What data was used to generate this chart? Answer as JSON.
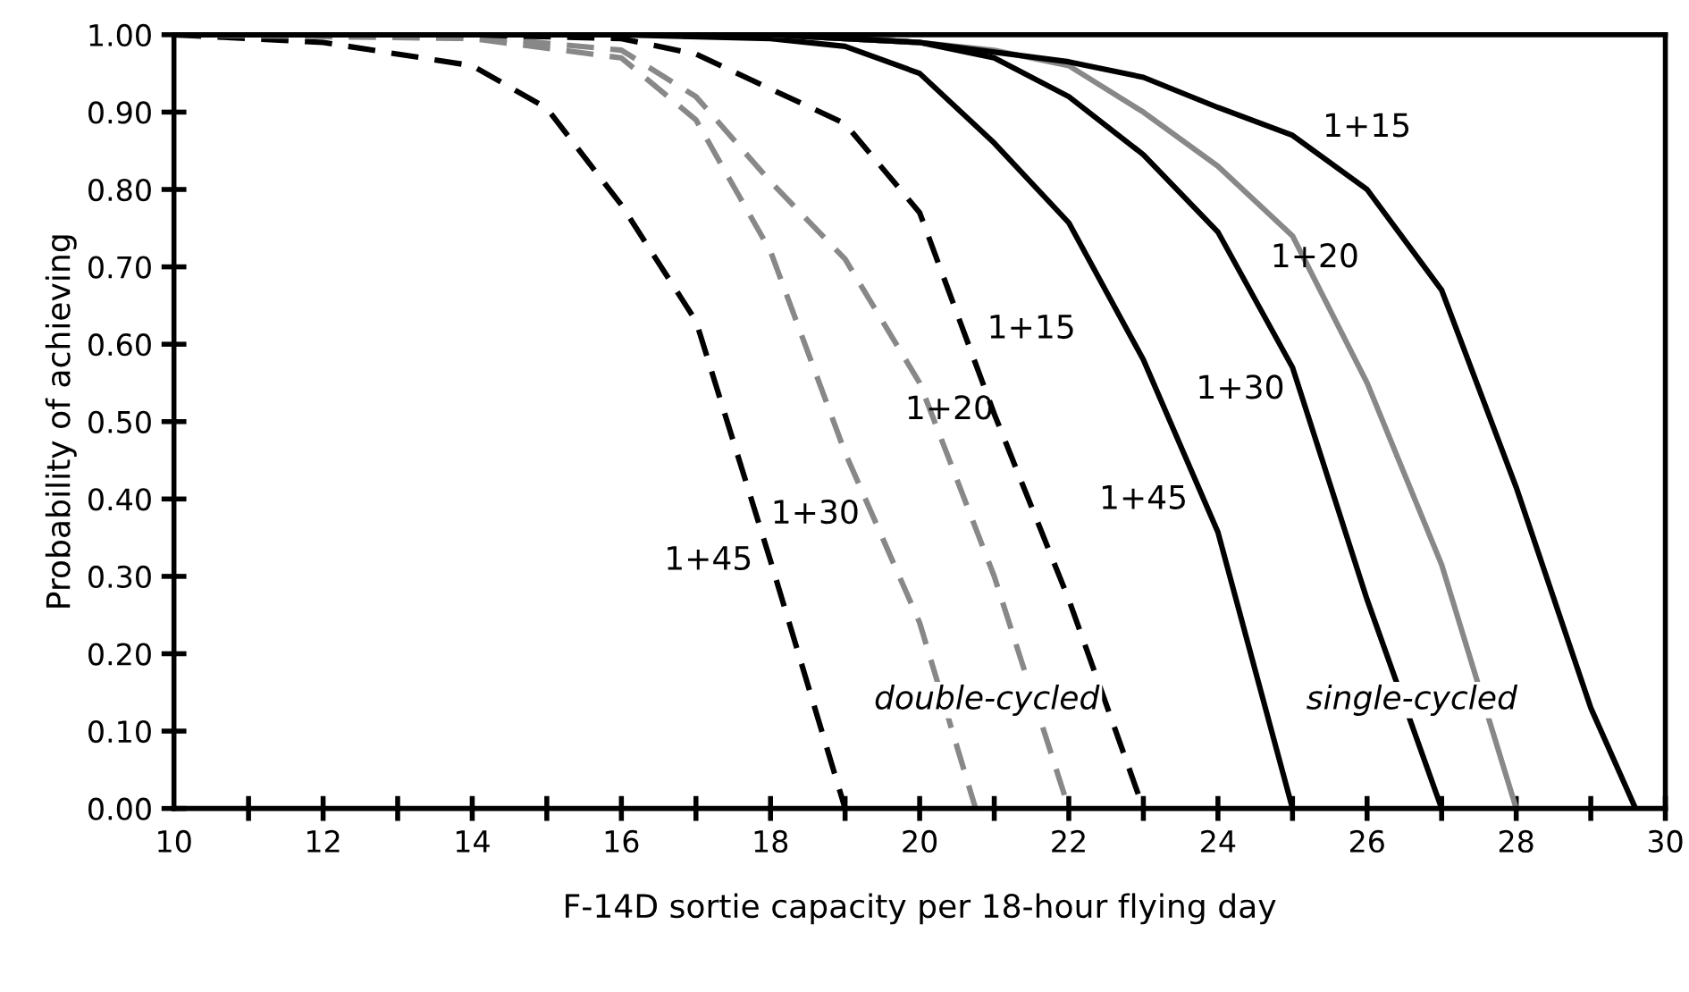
{
  "chart_data": {
    "type": "line",
    "xlabel": "F-14D sortie capacity per 18-hour flying day",
    "ylabel": "Probability of achieving",
    "xlim": [
      10,
      30
    ],
    "ylim": [
      0,
      1
    ],
    "xticks": [
      10,
      {
        "value": 11,
        "label": null
      },
      12,
      {
        "value": 13,
        "label": null
      },
      14,
      {
        "value": 15,
        "label": null
      },
      16,
      {
        "value": 17,
        "label": null
      },
      18,
      {
        "value": 19,
        "label": null
      },
      20,
      {
        "value": 21,
        "label": null
      },
      22,
      {
        "value": 23,
        "label": null
      },
      24,
      {
        "value": 25,
        "label": null
      },
      26,
      {
        "value": 27,
        "label": null
      },
      28,
      {
        "value": 29,
        "label": null
      },
      30
    ],
    "yticks": [
      {
        "value": 0,
        "label": "0.00"
      },
      {
        "value": 0.1,
        "label": "0.10"
      },
      {
        "value": 0.2,
        "label": "0.20"
      },
      {
        "value": 0.3,
        "label": "0.30"
      },
      {
        "value": 0.4,
        "label": "0.40"
      },
      {
        "value": 0.5,
        "label": "0.50"
      },
      {
        "value": 0.6,
        "label": "0.60"
      },
      {
        "value": 0.7,
        "label": "0.70"
      },
      {
        "value": 0.8,
        "label": "0.80"
      },
      {
        "value": 0.9,
        "label": "0.90"
      },
      {
        "value": 1,
        "label": "1.00"
      }
    ],
    "grid": false,
    "marker": "none",
    "series": [
      {
        "color": "#000000",
        "line_style": "dashed",
        "x": [
          10,
          12,
          14,
          15,
          16,
          17,
          18,
          19
        ],
        "values": [
          1.0,
          0.99,
          0.96,
          0.905,
          0.78,
          0.63,
          0.32,
          0.0
        ]
      },
      {
        "color": "#888888",
        "line_style": "dashed",
        "x": [
          10,
          14,
          16,
          17,
          18,
          19,
          20,
          20.75
        ],
        "values": [
          1.0,
          0.995,
          0.97,
          0.89,
          0.72,
          0.46,
          0.24,
          0.0
        ]
      },
      {
        "color": "#888888",
        "line_style": "dashed",
        "x": [
          10,
          14,
          16,
          17,
          18,
          19,
          20,
          21,
          22
        ],
        "values": [
          1.0,
          0.998,
          0.98,
          0.92,
          0.81,
          0.71,
          0.55,
          0.3,
          0.0
        ]
      },
      {
        "color": "#000000",
        "line_style": "dashed",
        "x": [
          10,
          14,
          16,
          17,
          18,
          19,
          20,
          21,
          22,
          23
        ],
        "values": [
          1.0,
          1.0,
          0.995,
          0.975,
          0.93,
          0.885,
          0.77,
          0.51,
          0.27,
          0.0
        ]
      },
      {
        "color": "#000000",
        "line_style": "solid",
        "x": [
          10,
          16,
          18,
          19,
          20,
          21,
          22,
          23,
          24,
          25
        ],
        "values": [
          1.0,
          1.0,
          0.995,
          0.985,
          0.95,
          0.86,
          0.757,
          0.58,
          0.357,
          0.0
        ]
      },
      {
        "color": "#000000",
        "line_style": "solid",
        "x": [
          10,
          18,
          20,
          21,
          22,
          23,
          24,
          25,
          26,
          27
        ],
        "values": [
          1.0,
          1.0,
          0.99,
          0.97,
          0.92,
          0.845,
          0.745,
          0.57,
          0.27,
          0.0
        ]
      },
      {
        "color": "#888888",
        "line_style": "solid",
        "x": [
          10,
          18,
          20,
          21,
          22,
          23,
          24,
          25,
          26,
          27,
          28
        ],
        "values": [
          1.0,
          1.0,
          0.99,
          0.98,
          0.96,
          0.9,
          0.83,
          0.74,
          0.55,
          0.315,
          0.0
        ]
      },
      {
        "color": "#000000",
        "line_style": "solid",
        "x": [
          10,
          18,
          20,
          22,
          23,
          24,
          25,
          26,
          27,
          28,
          29,
          29.6
        ],
        "values": [
          1.0,
          1.0,
          0.99,
          0.965,
          0.945,
          0.906,
          0.87,
          0.8,
          0.67,
          0.415,
          0.13,
          0.0
        ]
      }
    ],
    "annotations": [
      {
        "text": "1+45",
        "x": 18,
        "y": 0.32
      },
      {
        "text": "1+30",
        "x": 19,
        "y": 0.46
      },
      {
        "text": "1+20",
        "x": 20,
        "y": 0.55
      },
      {
        "text": "1+15",
        "x": 21,
        "y": 0.51
      },
      {
        "text": "1+45",
        "x": 24,
        "y": 0.357
      },
      {
        "text": "1+30",
        "x": 25,
        "y": 0.57
      },
      {
        "text": "1+20",
        "x": 25,
        "y": 0.74
      },
      {
        "text": "1+15",
        "x": 25,
        "y": 0.87
      },
      "double-cycled",
      "single-cycled"
    ]
  }
}
